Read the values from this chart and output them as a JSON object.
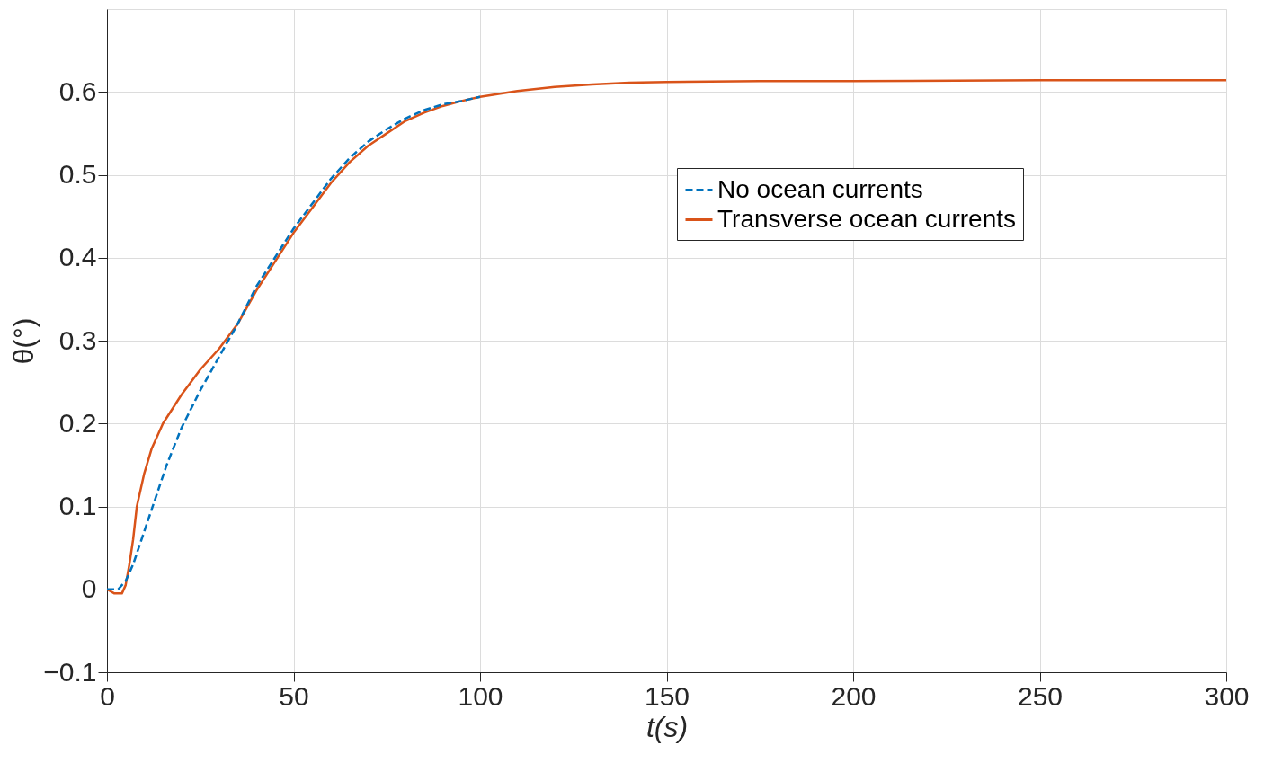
{
  "chart_data": {
    "type": "line",
    "xlabel": "t(s)",
    "ylabel": "θ(°)",
    "xlim": [
      0,
      300
    ],
    "xticks": [
      0,
      50,
      100,
      150,
      200,
      250,
      300
    ],
    "ylim": [
      -0.1,
      0.7
    ],
    "yticks": [
      -0.1,
      0,
      0.1,
      0.2,
      0.3,
      0.4,
      0.5,
      0.6
    ],
    "grid": true,
    "legend": "top right",
    "marker": "none",
    "series": [
      {
        "name": "No ocean currents",
        "color": "#0072bd",
        "line_style": "dashed",
        "x": [
          0,
          3,
          5,
          7,
          10,
          13,
          16,
          20,
          25,
          30,
          35,
          40,
          45,
          50,
          55,
          60,
          65,
          70,
          75,
          80,
          85,
          90,
          95,
          100
        ],
        "values": [
          0,
          0,
          0.01,
          0.03,
          0.07,
          0.11,
          0.15,
          0.195,
          0.24,
          0.28,
          0.32,
          0.365,
          0.4,
          0.435,
          0.465,
          0.495,
          0.52,
          0.54,
          0.555,
          0.568,
          0.578,
          0.585,
          0.589,
          0.594
        ]
      },
      {
        "name": "Transverse ocean currents",
        "color": "#d95319",
        "line_style": "solid",
        "x": [
          0,
          2,
          4,
          5,
          6,
          7,
          8,
          10,
          12,
          15,
          20,
          25,
          30,
          35,
          40,
          45,
          50,
          55,
          60,
          65,
          70,
          75,
          80,
          85,
          90,
          95,
          100,
          110,
          120,
          130,
          140,
          150,
          175,
          200,
          250,
          300
        ],
        "values": [
          0,
          -0.005,
          -0.005,
          0.005,
          0.03,
          0.06,
          0.1,
          0.14,
          0.17,
          0.2,
          0.235,
          0.265,
          0.29,
          0.32,
          0.36,
          0.395,
          0.43,
          0.46,
          0.49,
          0.515,
          0.535,
          0.55,
          0.565,
          0.575,
          0.583,
          0.589,
          0.594,
          0.601,
          0.606,
          0.609,
          0.611,
          0.612,
          0.613,
          0.613,
          0.614,
          0.614
        ]
      }
    ]
  }
}
